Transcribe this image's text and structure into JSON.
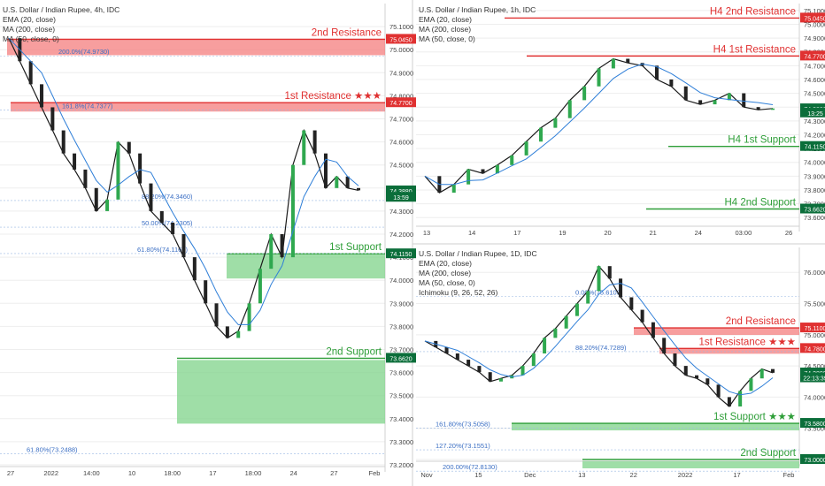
{
  "colors": {
    "red": "#e03131",
    "green": "#2e9e38",
    "greenZone": "#7fd389",
    "redZone": "#f47d7d",
    "blue": "#2f7fd8",
    "pink": "#e88aa0",
    "axis": "#444444",
    "grid": "#eeeeee",
    "cur": "#0b6e3a"
  },
  "panels": [
    {
      "id": "h4",
      "legend": [
        "U.S. Dollar / Indian Rupee, 4h, IDC",
        "EMA (20, close)",
        "MA (200, close)",
        "MA (50, close, 0)"
      ],
      "ylim": [
        73.2,
        75.2
      ],
      "y_ticks": [
        "75.1000",
        "75.0000",
        "74.9000",
        "74.8000",
        "74.7000",
        "74.6000",
        "74.5000",
        "74.4000",
        "74.3000",
        "74.2000",
        "74.1000",
        "74.0000",
        "73.9000",
        "73.8000",
        "73.7000",
        "73.6000",
        "73.5000",
        "73.4000",
        "73.3000",
        "73.2000"
      ],
      "x_labels": [
        "27",
        "2022",
        "14:00",
        "10",
        "18:00",
        "17",
        "18:00",
        "24",
        "27",
        "Feb"
      ],
      "badges": [
        {
          "label": "75.0450",
          "price": 75.045,
          "color": "red"
        },
        {
          "label": "74.7700",
          "price": 74.77,
          "color": "red"
        },
        {
          "label": "74.3880",
          "price": 74.388,
          "color": "dark"
        },
        {
          "label": "13:59",
          "price": 74.36,
          "color": "dark"
        },
        {
          "label": "74.1150",
          "price": 74.115,
          "color": "dark"
        },
        {
          "label": "73.6620",
          "price": 73.662,
          "color": "dark"
        }
      ],
      "levels": [
        {
          "label": "2nd Resistance",
          "price": 75.045,
          "color": "red"
        },
        {
          "label": "1st Resistance ★★★",
          "price": 74.77,
          "color": "red"
        },
        {
          "label": "1st Support",
          "price": 74.115,
          "color": "green"
        },
        {
          "label": "2nd Support",
          "price": 73.662,
          "color": "green"
        }
      ],
      "fibs": [
        {
          "label": "200.0%(74.9730)",
          "price": 74.973
        },
        {
          "label": "161.8%(74.7377)",
          "price": 74.7377
        },
        {
          "label": "88.20%(74.3460)",
          "price": 74.346
        },
        {
          "label": "50.00%(74.2305)",
          "price": 74.2305
        },
        {
          "label": "61.80%(74.1160)",
          "price": 74.116
        },
        {
          "label": "61.80%(73.2488)",
          "price": 73.2488
        }
      ]
    },
    {
      "id": "h1",
      "legend": [
        "U.S. Dollar / Indian Rupee, 1h, IDC",
        "EMA (20, close)",
        "MA (200, close)",
        "MA (50, close, 0)"
      ],
      "ylim": [
        73.55,
        75.15
      ],
      "y_ticks": [
        "75.1000",
        "75.0000",
        "74.9000",
        "74.8000",
        "74.7000",
        "74.6000",
        "74.5000",
        "74.4000",
        "74.3000",
        "74.2000",
        "74.1000",
        "74.0000",
        "73.9000",
        "73.8000",
        "73.7000",
        "73.6000"
      ],
      "x_labels": [
        "13",
        "14",
        "17",
        "19",
        "20",
        "21",
        "24",
        "03:00",
        "26"
      ],
      "badges": [
        {
          "label": "75.0450",
          "price": 75.045,
          "color": "red"
        },
        {
          "label": "74.7700",
          "price": 74.77,
          "color": "red"
        },
        {
          "label": "74.3880",
          "price": 74.388,
          "color": "dark"
        },
        {
          "label": "13:25",
          "price": 74.358,
          "color": "dark"
        },
        {
          "label": "74.1150",
          "price": 74.115,
          "color": "dark"
        },
        {
          "label": "73.6620",
          "price": 73.662,
          "color": "dark"
        }
      ],
      "levels": [
        {
          "label": "H4 2nd Resistance",
          "price": 75.045,
          "color": "red"
        },
        {
          "label": "H4 1st Resistance",
          "price": 74.77,
          "color": "red"
        },
        {
          "label": "H4 1st Support",
          "price": 74.115,
          "color": "green"
        },
        {
          "label": "H4 2nd Support",
          "price": 73.662,
          "color": "green"
        }
      ]
    },
    {
      "id": "d1",
      "legend": [
        "U.S. Dollar / Indian Rupee, 1D, IDC",
        "EMA (20, close)",
        "MA (200, close)",
        "MA (50, close, 0)",
        "Ichimoku (9, 26, 52, 26)"
      ],
      "ylim": [
        73.0,
        76.4
      ],
      "y_ticks": [
        "76.0000",
        "75.5000",
        "75.0000",
        "74.5000",
        "74.0000",
        "73.5000",
        "73.0000"
      ],
      "x_labels": [
        "Nov",
        "15",
        "Dec",
        "13",
        "22",
        "2022",
        "17",
        "Feb"
      ],
      "badges": [
        {
          "label": "75.1100",
          "price": 75.11,
          "color": "red"
        },
        {
          "label": "74.7800",
          "price": 74.78,
          "color": "red"
        },
        {
          "label": "74.3880",
          "price": 74.388,
          "color": "dark"
        },
        {
          "label": "22:13:39",
          "price": 74.31,
          "color": "dark"
        },
        {
          "label": "73.5800",
          "price": 73.58,
          "color": "dark"
        },
        {
          "label": "73.0000",
          "price": 73.0,
          "color": "dark"
        }
      ],
      "levels": [
        {
          "label": "2nd Resistance",
          "price": 75.11,
          "color": "red"
        },
        {
          "label": "1st Resistance ★★★",
          "price": 74.78,
          "color": "red"
        },
        {
          "label": "1st Support ★★★",
          "price": 73.58,
          "color": "green"
        },
        {
          "label": "2nd Support",
          "price": 73.0,
          "color": "green"
        }
      ],
      "fibs": [
        {
          "label": "0.00%(75.6103)",
          "price": 75.6103
        },
        {
          "label": "88.20%(74.7289)",
          "price": 74.7289
        },
        {
          "label": "161.80%(73.5058)",
          "price": 73.5058
        },
        {
          "label": "127.20%(73.1551)",
          "price": 73.1551
        },
        {
          "label": "200.00%(72.8130)",
          "price": 72.813
        }
      ]
    }
  ],
  "chart_data": [
    {
      "type": "line",
      "title": "U.S. Dollar / Indian Rupee, 4h, IDC",
      "series": [
        {
          "name": "U.S. Dollar / Indian Rupee",
          "values": [
            75.05,
            74.95,
            74.85,
            74.75,
            74.65,
            74.55,
            74.48,
            74.4,
            74.3,
            74.35,
            74.6,
            74.55,
            74.42,
            74.3,
            74.25,
            74.2,
            74.1,
            74.0,
            73.9,
            73.8,
            73.75,
            73.78,
            73.9,
            74.05,
            74.2,
            74.1,
            74.5,
            74.65,
            74.55,
            74.4,
            74.45,
            74.4,
            74.39
          ]
        }
      ]
    },
    {
      "type": "line",
      "title": "U.S. Dollar / Indian Rupee, 1h, IDC",
      "series": [
        {
          "name": "U.S. Dollar / Indian Rupee",
          "values": [
            73.9,
            73.78,
            73.84,
            73.95,
            73.92,
            73.98,
            74.05,
            74.15,
            74.25,
            74.32,
            74.45,
            74.55,
            74.68,
            74.75,
            74.72,
            74.7,
            74.6,
            74.55,
            74.45,
            74.42,
            74.45,
            74.5,
            74.4,
            74.38,
            74.39
          ]
        }
      ]
    },
    {
      "type": "line",
      "title": "U.S. Dollar / Indian Rupee, 1D, IDC",
      "series": [
        {
          "name": "U.S. Dollar / Indian Rupee",
          "values": [
            74.9,
            74.8,
            74.7,
            74.6,
            74.5,
            74.4,
            74.25,
            74.3,
            74.35,
            74.5,
            74.7,
            74.95,
            75.1,
            75.3,
            75.5,
            75.7,
            76.1,
            75.9,
            75.6,
            75.4,
            75.2,
            74.95,
            74.7,
            74.5,
            74.35,
            74.3,
            74.2,
            74.0,
            73.85,
            74.1,
            74.3,
            74.45,
            74.39
          ]
        }
      ]
    }
  ]
}
